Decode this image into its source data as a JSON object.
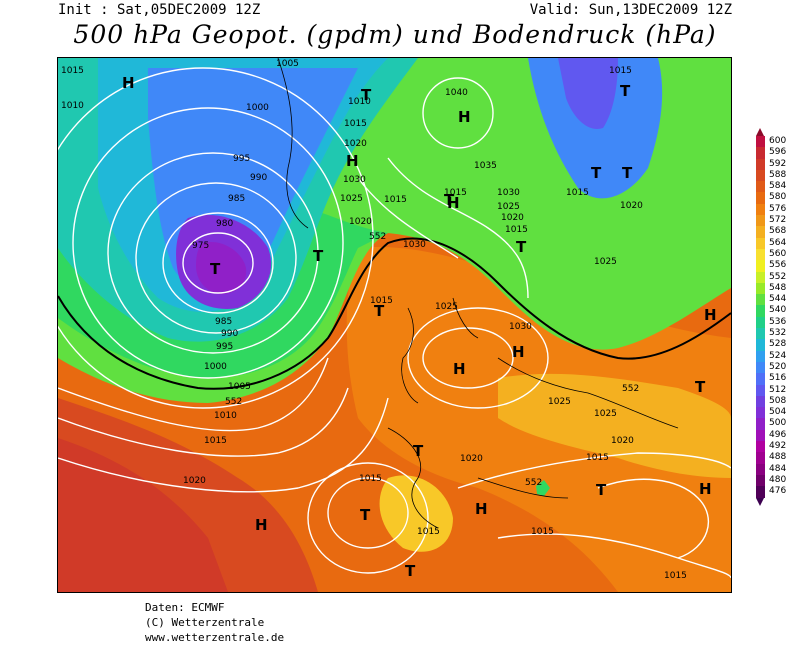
{
  "header": {
    "init": "Init : Sat,05DEC2009 12Z",
    "valid": "Valid: Sun,13DEC2009 12Z",
    "title": "500 hPa Geopot. (gpdm) und Bodendruck (hPa)"
  },
  "legend": {
    "values": [
      "600",
      "596",
      "592",
      "588",
      "584",
      "580",
      "576",
      "572",
      "568",
      "564",
      "560",
      "556",
      "552",
      "548",
      "544",
      "540",
      "536",
      "532",
      "528",
      "524",
      "520",
      "516",
      "512",
      "508",
      "504",
      "500",
      "496",
      "492",
      "488",
      "484",
      "480",
      "476"
    ],
    "colors": [
      "#c01040",
      "#c82a30",
      "#d03a28",
      "#d84a20",
      "#e05a18",
      "#e86a10",
      "#f08010",
      "#f09818",
      "#f4b020",
      "#f8c828",
      "#f8e030",
      "#f0f020",
      "#c8f028",
      "#98ea28",
      "#60e040",
      "#30d860",
      "#20d088",
      "#20c8b0",
      "#20b8d8",
      "#30a0f0",
      "#4088f8",
      "#5070f8",
      "#6058f0",
      "#7040e0",
      "#8030d8",
      "#9020c8",
      "#a010b8",
      "#b000a0",
      "#a00090",
      "#8a0080",
      "#70006a",
      "#500058"
    ]
  },
  "pressure_labels": [
    "1005",
    "1000",
    "995",
    "990",
    "985",
    "980",
    "975",
    "1010",
    "1015",
    "1020",
    "1025",
    "1030",
    "1035",
    "1040",
    "1015",
    "1020",
    "1025",
    "1030",
    "1015",
    "1020",
    "1025",
    "1030",
    "1015",
    "1020",
    "1025",
    "1015",
    "1010",
    "1005",
    "1000",
    "995",
    "990",
    "985",
    "1025",
    "1030",
    "1025",
    "1015",
    "1020",
    "1020",
    "1015",
    "1015",
    "1015",
    "1015",
    "1015",
    "1015",
    "1010",
    "1015",
    "1015",
    "1020",
    "552",
    "552",
    "552",
    "552"
  ],
  "highs_lows": [
    "H",
    "T",
    "H",
    "H",
    "H",
    "T",
    "T",
    "T",
    "T",
    "T",
    "T",
    "H",
    "H",
    "T",
    "T",
    "T",
    "H",
    "H",
    "T",
    "H",
    "T",
    "T",
    "H",
    "T"
  ],
  "credits": {
    "line1": "Daten: ECMWF",
    "line2": "(C) Wetterzentrale",
    "line3": "www.wetterzentrale.de"
  }
}
